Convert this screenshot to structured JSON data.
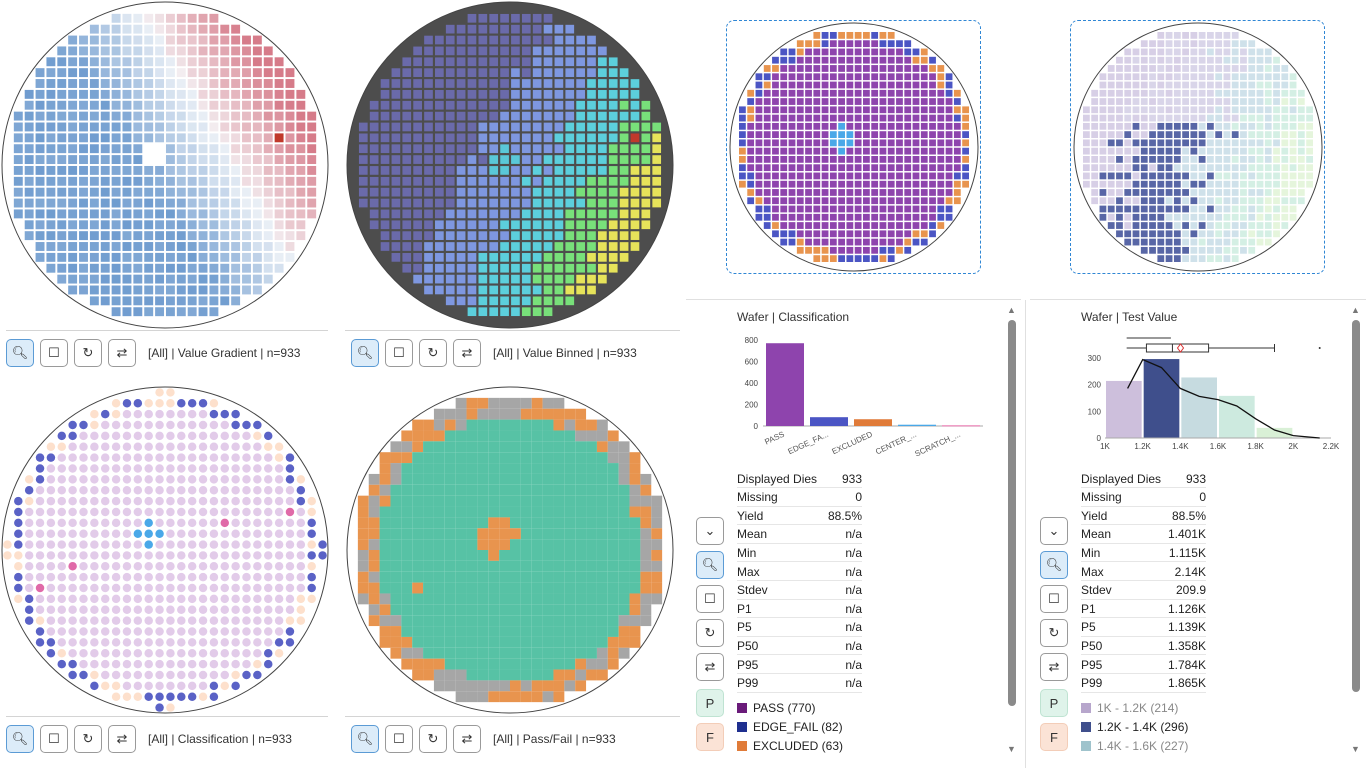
{
  "wafers": [
    {
      "key": "gradient",
      "toolbar_label": "[All] | Value Gradient | n=933"
    },
    {
      "key": "binned",
      "toolbar_label": "[All] | Value Binned | n=933"
    },
    {
      "key": "classification",
      "toolbar_label": "[All] | Classification | n=933"
    },
    {
      "key": "passfail",
      "toolbar_label": "[All] | Pass/Fail | n=933"
    }
  ],
  "toolbar_icons": [
    "zoom-icon",
    "select-box-icon",
    "reset-icon",
    "swap-icon"
  ],
  "colors": {
    "accent": "#2f86d4",
    "pass_purple": "#8e44ad",
    "edge_fail": "#1f2f8f",
    "excluded": "#e07b39",
    "center": "#4aa8e8",
    "scratch": "#e86aa8",
    "pass_green": "#57c2a5",
    "fail_orange": "#e8944e",
    "gray": "#a3a3a3"
  },
  "classification_panel": {
    "title": "Wafer | Classification",
    "chart_data": {
      "type": "bar",
      "categories": [
        "PASS",
        "EDGE_FA...",
        "EXCLUDED",
        "CENTER_...",
        "SCRATCH_..."
      ],
      "values": [
        770,
        82,
        63,
        12,
        6
      ],
      "colors": [
        "#8e44ad",
        "#4b55c4",
        "#e07b39",
        "#4aa8e8",
        "#e86aa8"
      ],
      "yticks": [
        "800",
        "600",
        "400",
        "200",
        "0"
      ],
      "ylim": [
        0,
        800
      ]
    },
    "stats": [
      {
        "label": "Displayed Dies",
        "value": "933"
      },
      {
        "label": "Missing",
        "value": "0"
      },
      {
        "label": "Yield",
        "value": "88.5%"
      },
      {
        "label": "Mean",
        "value": "n/a"
      },
      {
        "label": "Min",
        "value": "n/a"
      },
      {
        "label": "Max",
        "value": "n/a"
      },
      {
        "label": "Stdev",
        "value": "n/a"
      },
      {
        "label": "P1",
        "value": "n/a"
      },
      {
        "label": "P5",
        "value": "n/a"
      },
      {
        "label": "P50",
        "value": "n/a"
      },
      {
        "label": "P95",
        "value": "n/a"
      },
      {
        "label": "P99",
        "value": "n/a"
      }
    ],
    "legend": [
      {
        "label": "PASS (770)",
        "color": "#6a1b7a"
      },
      {
        "label": "EDGE_FAIL (82)",
        "color": "#1f2f8f"
      },
      {
        "label": "EXCLUDED (63)",
        "color": "#e07b39"
      }
    ],
    "p_label": "P",
    "f_label": "F"
  },
  "testvalue_panel": {
    "title": "Wafer | Test Value",
    "chart_data": {
      "type": "bar",
      "categories": [
        "1K - 1.2K",
        "1.2K - 1.4K",
        "1.4K - 1.6K",
        "1.6K - 1.8K",
        "1.8K - 2K",
        "2K - 2.2K"
      ],
      "values": [
        214,
        296,
        227,
        158,
        38,
        2
      ],
      "colors": [
        "#cdbfdc",
        "#3f4f8c",
        "#c6dbe0",
        "#cdeadf",
        "#d9f0d6",
        "#eef8e8"
      ],
      "yticks": [
        "300",
        "200",
        "100",
        "0"
      ],
      "xticks": [
        "1K",
        "1.2K",
        "1.4K",
        "1.6K",
        "1.8K",
        "2K",
        "2.2K"
      ],
      "ylim": [
        0,
        300
      ],
      "boxplot": {
        "min": 1.115,
        "q1": 1.22,
        "median": 1.358,
        "mean": 1.401,
        "q3": 1.55,
        "whisker_high": 1.9,
        "outlier": 2.14
      }
    },
    "stats": [
      {
        "label": "Displayed Dies",
        "value": "933"
      },
      {
        "label": "Missing",
        "value": "0"
      },
      {
        "label": "Yield",
        "value": "88.5%"
      },
      {
        "label": "Mean",
        "value": "1.401K"
      },
      {
        "label": "Min",
        "value": "1.115K"
      },
      {
        "label": "Max",
        "value": "2.14K"
      },
      {
        "label": "Stdev",
        "value": "209.9"
      },
      {
        "label": "P1",
        "value": "1.126K"
      },
      {
        "label": "P5",
        "value": "1.139K"
      },
      {
        "label": "P50",
        "value": "1.358K"
      },
      {
        "label": "P95",
        "value": "1.784K"
      },
      {
        "label": "P99",
        "value": "1.865K"
      }
    ],
    "legend": [
      {
        "label": "1K - 1.2K (214)",
        "color": "#b7a6cc"
      },
      {
        "label": "1.2K - 1.4K (296)",
        "color": "#3f4f8c"
      },
      {
        "label": "1.4K - 1.6K (227)",
        "color": "#9fc3cc"
      }
    ],
    "p_label": "P",
    "f_label": "F"
  }
}
